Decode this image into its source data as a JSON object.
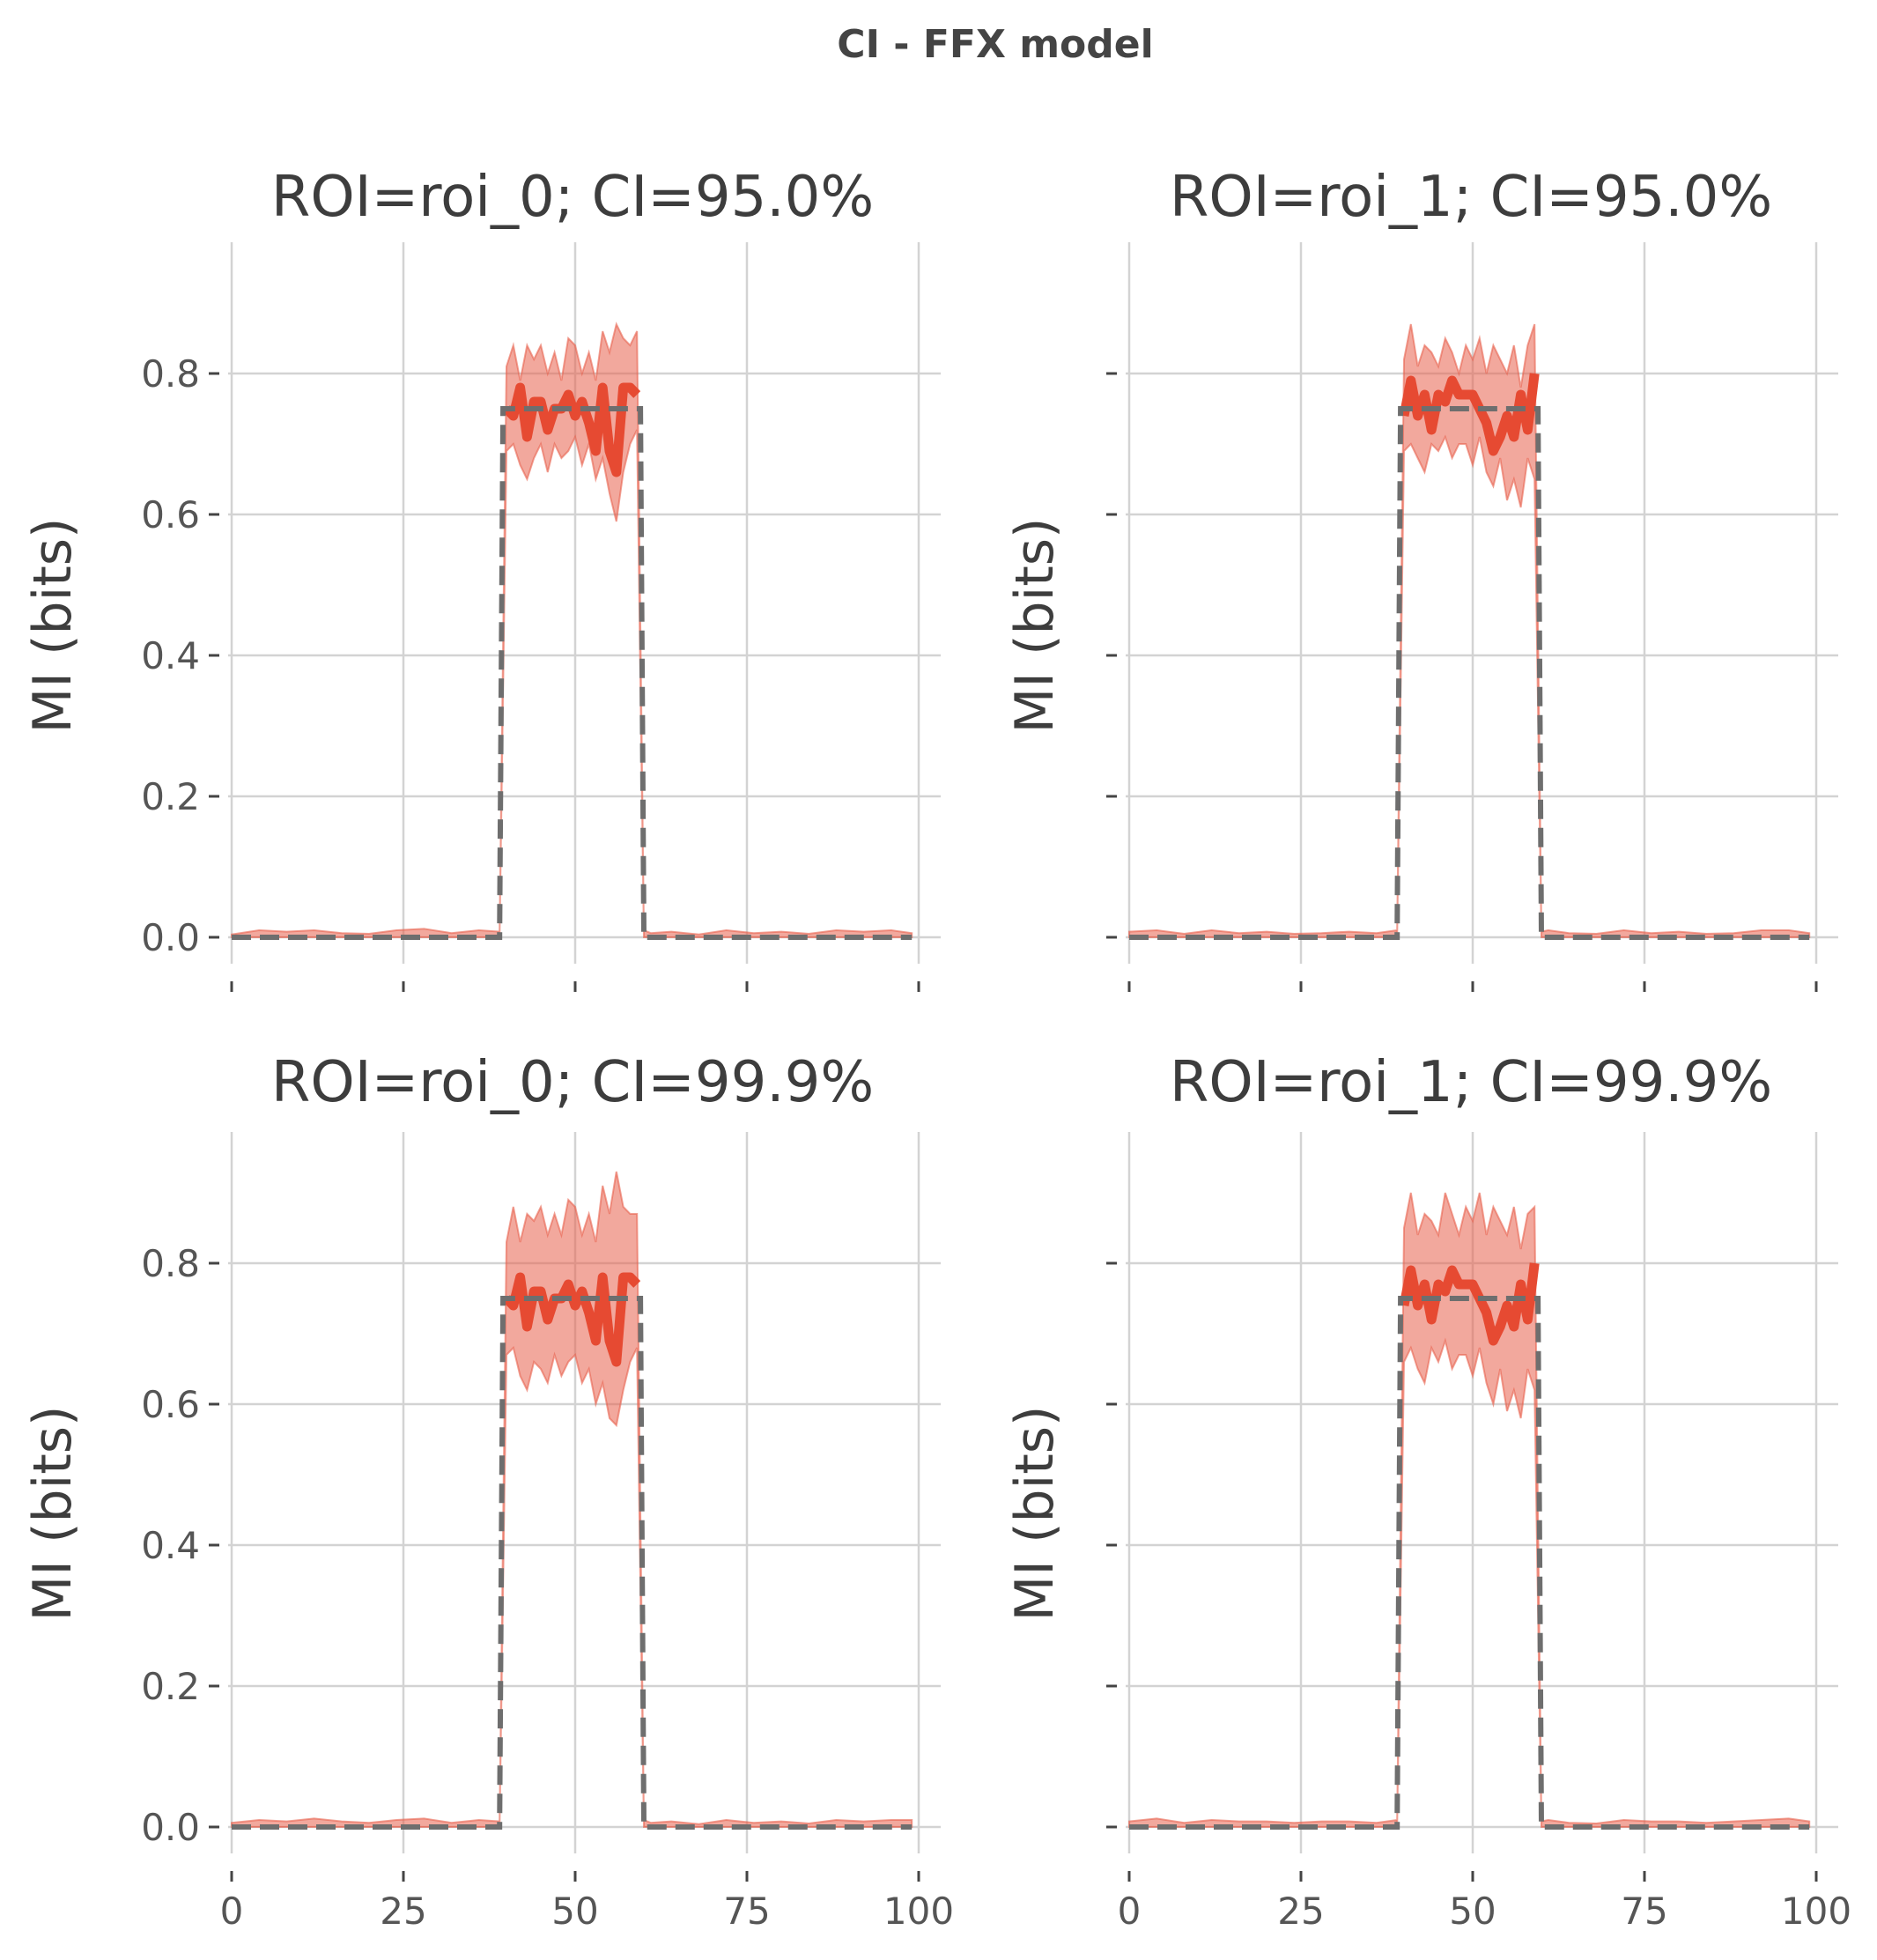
{
  "figure": {
    "suptitle": "CI - FFX model"
  },
  "colors": {
    "band": "#e8604c",
    "band_alpha": 0.55,
    "mean_line": "#e64a32",
    "true_line": "#6e6e6e",
    "grid": "#d3d3d3",
    "text": "#3d3d3d"
  },
  "chart_data": [
    {
      "type": "line",
      "title": "ROI=roi_0; CI=95.0%",
      "ylabel": "MI (bits)",
      "xlim": [
        0,
        100
      ],
      "ylim": [
        0,
        0.9
      ],
      "xticks": [
        0,
        25,
        50,
        75,
        100
      ],
      "xticklabels_visible": false,
      "yticks": [
        0.0,
        0.2,
        0.4,
        0.6,
        0.8
      ],
      "yticklabels": [
        "0.0",
        "0.2",
        "0.4",
        "0.6",
        "0.8"
      ],
      "grid": true,
      "series": [
        {
          "role": "ci_band",
          "x": [
            0,
            4,
            8,
            12,
            16,
            20,
            24,
            28,
            32,
            36,
            39,
            40,
            41,
            42,
            43,
            44,
            45,
            46,
            47,
            48,
            49,
            50,
            51,
            52,
            53,
            54,
            55,
            56,
            57,
            58,
            59,
            60,
            61,
            64,
            68,
            72,
            76,
            80,
            84,
            88,
            92,
            96,
            99
          ],
          "y_low": [
            0,
            0,
            0,
            0,
            0,
            0,
            0,
            0,
            0,
            0,
            0,
            0.69,
            0.7,
            0.67,
            0.65,
            0.68,
            0.7,
            0.66,
            0.7,
            0.68,
            0.69,
            0.71,
            0.67,
            0.7,
            0.65,
            0.68,
            0.63,
            0.59,
            0.66,
            0.7,
            0.72,
            0,
            0,
            0,
            0,
            0,
            0,
            0,
            0,
            0,
            0,
            0,
            0
          ],
          "y_high": [
            0.004,
            0.01,
            0.008,
            0.01,
            0.006,
            0.005,
            0.01,
            0.012,
            0.006,
            0.01,
            0.008,
            0.81,
            0.84,
            0.79,
            0.84,
            0.82,
            0.84,
            0.8,
            0.83,
            0.79,
            0.85,
            0.84,
            0.8,
            0.83,
            0.79,
            0.86,
            0.83,
            0.87,
            0.85,
            0.84,
            0.86,
            0.01,
            0.006,
            0.008,
            0.004,
            0.01,
            0.006,
            0.008,
            0.005,
            0.01,
            0.008,
            0.01,
            0.006
          ]
        },
        {
          "role": "mean",
          "x": [
            40,
            41,
            42,
            43,
            44,
            45,
            46,
            47,
            48,
            49,
            50,
            51,
            52,
            53,
            54,
            55,
            56,
            57,
            58,
            59
          ],
          "y": [
            0.75,
            0.74,
            0.78,
            0.71,
            0.76,
            0.76,
            0.72,
            0.75,
            0.75,
            0.77,
            0.74,
            0.76,
            0.73,
            0.69,
            0.78,
            0.69,
            0.66,
            0.78,
            0.78,
            0.77
          ]
        },
        {
          "role": "true",
          "x": [
            0,
            39,
            39.5,
            59.5,
            60,
            99
          ],
          "y": [
            0,
            0,
            0.75,
            0.75,
            0,
            0
          ]
        }
      ]
    },
    {
      "type": "line",
      "title": "ROI=roi_1; CI=95.0%",
      "ylabel": "MI (bits)",
      "xlim": [
        0,
        100
      ],
      "ylim": [
        0,
        0.9
      ],
      "xticks": [
        0,
        25,
        50,
        75,
        100
      ],
      "xticklabels_visible": false,
      "yticks": [
        0.0,
        0.2,
        0.4,
        0.6,
        0.8
      ],
      "yticklabels_visible": false,
      "grid": true,
      "series": [
        {
          "role": "ci_band",
          "x": [
            0,
            4,
            8,
            12,
            16,
            20,
            24,
            28,
            32,
            36,
            39,
            40,
            41,
            42,
            43,
            44,
            45,
            46,
            47,
            48,
            49,
            50,
            51,
            52,
            53,
            54,
            55,
            56,
            57,
            58,
            59,
            60,
            61,
            64,
            68,
            72,
            76,
            80,
            84,
            88,
            92,
            96,
            99
          ],
          "y_low": [
            0,
            0,
            0,
            0,
            0,
            0,
            0,
            0,
            0,
            0,
            0,
            0.69,
            0.7,
            0.68,
            0.66,
            0.7,
            0.69,
            0.71,
            0.68,
            0.7,
            0.7,
            0.67,
            0.71,
            0.66,
            0.64,
            0.68,
            0.62,
            0.65,
            0.61,
            0.68,
            0.65,
            0,
            0,
            0,
            0,
            0,
            0,
            0,
            0,
            0,
            0,
            0,
            0
          ],
          "y_high": [
            0.008,
            0.01,
            0.005,
            0.01,
            0.006,
            0.008,
            0.005,
            0.006,
            0.008,
            0.006,
            0.01,
            0.82,
            0.87,
            0.81,
            0.84,
            0.83,
            0.81,
            0.85,
            0.83,
            0.8,
            0.84,
            0.82,
            0.85,
            0.8,
            0.84,
            0.82,
            0.8,
            0.84,
            0.78,
            0.84,
            0.87,
            0.008,
            0.01,
            0.006,
            0.005,
            0.01,
            0.006,
            0.008,
            0.005,
            0.006,
            0.01,
            0.01,
            0.006
          ]
        },
        {
          "role": "mean",
          "x": [
            40,
            41,
            42,
            43,
            44,
            45,
            46,
            47,
            48,
            49,
            50,
            51,
            52,
            53,
            54,
            55,
            56,
            57,
            58,
            59
          ],
          "y": [
            0.74,
            0.79,
            0.74,
            0.77,
            0.72,
            0.77,
            0.76,
            0.79,
            0.77,
            0.77,
            0.77,
            0.75,
            0.73,
            0.69,
            0.71,
            0.74,
            0.71,
            0.77,
            0.72,
            0.8
          ]
        },
        {
          "role": "true",
          "x": [
            0,
            39,
            39.5,
            59.5,
            60,
            99
          ],
          "y": [
            0,
            0,
            0.75,
            0.75,
            0,
            0
          ]
        }
      ]
    },
    {
      "type": "line",
      "title": "ROI=roi_0; CI=99.9%",
      "ylabel": "MI (bits)",
      "xlim": [
        0,
        100
      ],
      "ylim": [
        0,
        0.9
      ],
      "xticks": [
        0,
        25,
        50,
        75,
        100
      ],
      "xticklabels": [
        "0",
        "25",
        "50",
        "75",
        "100"
      ],
      "yticks": [
        0.0,
        0.2,
        0.4,
        0.6,
        0.8
      ],
      "yticklabels": [
        "0.0",
        "0.2",
        "0.4",
        "0.6",
        "0.8"
      ],
      "grid": true,
      "series": [
        {
          "role": "ci_band",
          "x": [
            0,
            4,
            8,
            12,
            16,
            20,
            24,
            28,
            32,
            36,
            39,
            40,
            41,
            42,
            43,
            44,
            45,
            46,
            47,
            48,
            49,
            50,
            51,
            52,
            53,
            54,
            55,
            56,
            57,
            58,
            59,
            60,
            61,
            64,
            68,
            72,
            76,
            80,
            84,
            88,
            92,
            96,
            99
          ],
          "y_low": [
            0,
            0,
            0,
            0,
            0,
            0,
            0,
            0,
            0,
            0,
            0,
            0.67,
            0.68,
            0.64,
            0.62,
            0.66,
            0.65,
            0.63,
            0.67,
            0.64,
            0.66,
            0.67,
            0.63,
            0.65,
            0.6,
            0.63,
            0.58,
            0.57,
            0.62,
            0.66,
            0.68,
            0,
            0,
            0,
            0,
            0,
            0,
            0,
            0,
            0,
            0,
            0,
            0
          ],
          "y_high": [
            0.006,
            0.01,
            0.008,
            0.012,
            0.008,
            0.006,
            0.01,
            0.012,
            0.006,
            0.01,
            0.008,
            0.83,
            0.88,
            0.83,
            0.87,
            0.86,
            0.88,
            0.84,
            0.87,
            0.84,
            0.89,
            0.88,
            0.84,
            0.87,
            0.83,
            0.91,
            0.87,
            0.93,
            0.88,
            0.87,
            0.87,
            0.01,
            0.006,
            0.008,
            0.004,
            0.01,
            0.006,
            0.008,
            0.005,
            0.01,
            0.008,
            0.01,
            0.01
          ]
        },
        {
          "role": "mean",
          "x": [
            40,
            41,
            42,
            43,
            44,
            45,
            46,
            47,
            48,
            49,
            50,
            51,
            52,
            53,
            54,
            55,
            56,
            57,
            58,
            59
          ],
          "y": [
            0.75,
            0.74,
            0.78,
            0.71,
            0.76,
            0.76,
            0.72,
            0.75,
            0.75,
            0.77,
            0.74,
            0.76,
            0.73,
            0.69,
            0.78,
            0.69,
            0.66,
            0.78,
            0.78,
            0.77
          ]
        },
        {
          "role": "true",
          "x": [
            0,
            39,
            39.5,
            59.5,
            60,
            99
          ],
          "y": [
            0,
            0,
            0.75,
            0.75,
            0,
            0
          ]
        }
      ]
    },
    {
      "type": "line",
      "title": "ROI=roi_1; CI=99.9%",
      "ylabel": "MI (bits)",
      "xlim": [
        0,
        100
      ],
      "ylim": [
        0,
        0.9
      ],
      "xticks": [
        0,
        25,
        50,
        75,
        100
      ],
      "xticklabels": [
        "0",
        "25",
        "50",
        "75",
        "100"
      ],
      "yticks": [
        0.0,
        0.2,
        0.4,
        0.6,
        0.8
      ],
      "yticklabels_visible": false,
      "grid": true,
      "series": [
        {
          "role": "ci_band",
          "x": [
            0,
            4,
            8,
            12,
            16,
            20,
            24,
            28,
            32,
            36,
            39,
            40,
            41,
            42,
            43,
            44,
            45,
            46,
            47,
            48,
            49,
            50,
            51,
            52,
            53,
            54,
            55,
            56,
            57,
            58,
            59,
            60,
            61,
            64,
            68,
            72,
            76,
            80,
            84,
            88,
            92,
            96,
            99
          ],
          "y_low": [
            0,
            0,
            0,
            0,
            0,
            0,
            0,
            0,
            0,
            0,
            0,
            0.66,
            0.68,
            0.65,
            0.63,
            0.68,
            0.66,
            0.69,
            0.65,
            0.67,
            0.67,
            0.64,
            0.68,
            0.63,
            0.6,
            0.65,
            0.59,
            0.62,
            0.58,
            0.65,
            0.62,
            0,
            0,
            0,
            0,
            0,
            0,
            0,
            0,
            0,
            0,
            0,
            0
          ],
          "y_high": [
            0.008,
            0.012,
            0.006,
            0.01,
            0.008,
            0.008,
            0.006,
            0.008,
            0.008,
            0.006,
            0.01,
            0.85,
            0.9,
            0.84,
            0.87,
            0.86,
            0.84,
            0.9,
            0.87,
            0.84,
            0.88,
            0.86,
            0.9,
            0.84,
            0.88,
            0.86,
            0.84,
            0.88,
            0.82,
            0.87,
            0.88,
            0.008,
            0.01,
            0.006,
            0.005,
            0.01,
            0.008,
            0.008,
            0.006,
            0.008,
            0.01,
            0.012,
            0.008
          ]
        },
        {
          "role": "mean",
          "x": [
            40,
            41,
            42,
            43,
            44,
            45,
            46,
            47,
            48,
            49,
            50,
            51,
            52,
            53,
            54,
            55,
            56,
            57,
            58,
            59
          ],
          "y": [
            0.74,
            0.79,
            0.74,
            0.77,
            0.72,
            0.77,
            0.76,
            0.79,
            0.77,
            0.77,
            0.77,
            0.75,
            0.73,
            0.69,
            0.71,
            0.74,
            0.71,
            0.77,
            0.72,
            0.8
          ]
        },
        {
          "role": "true",
          "x": [
            0,
            39,
            39.5,
            59.5,
            60,
            99
          ],
          "y": [
            0,
            0,
            0.75,
            0.75,
            0,
            0
          ]
        }
      ]
    }
  ]
}
